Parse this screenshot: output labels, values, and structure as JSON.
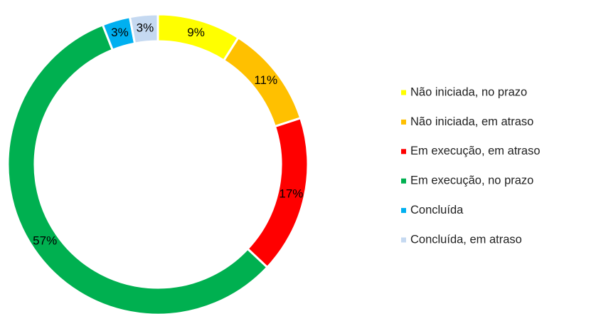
{
  "chart_data": {
    "type": "pie",
    "categories": [
      "Não iniciada, no prazo",
      "Não iniciada, em atraso",
      "Em execução, em atraso",
      "Em execução, no prazo",
      "Concluída",
      "Concluída, em atraso"
    ],
    "values": [
      9,
      11,
      17,
      57,
      3,
      3
    ],
    "value_labels": [
      "9%",
      "11%",
      "17%",
      "57%",
      "3%",
      "3%"
    ],
    "colors": [
      "#ffff00",
      "#ffc000",
      "#ff0000",
      "#00b050",
      "#00b0f0",
      "#c5d9f1"
    ],
    "donut": true,
    "legend": "right"
  }
}
